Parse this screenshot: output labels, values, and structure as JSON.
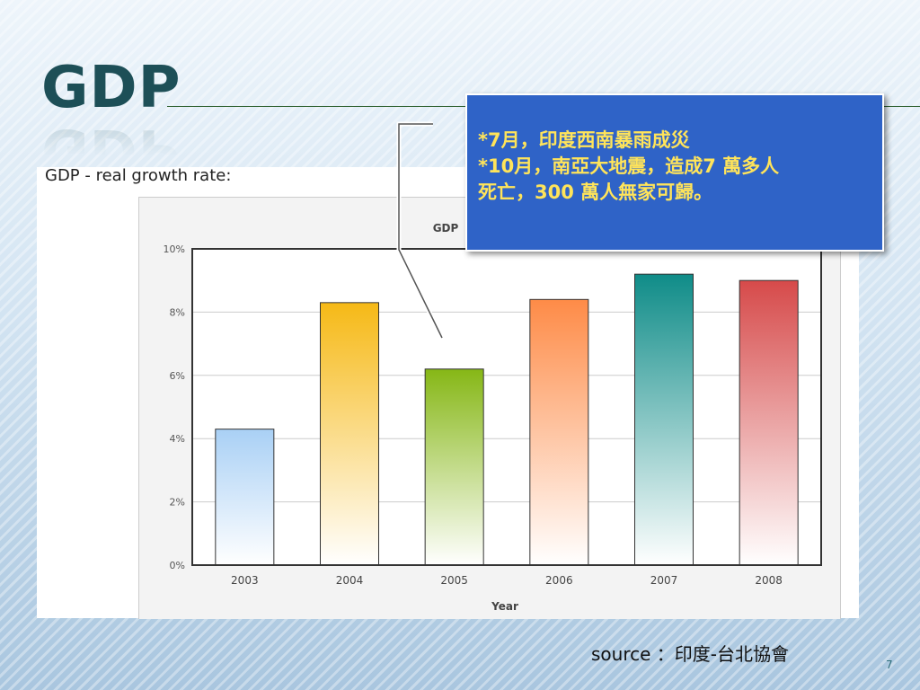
{
  "slide": {
    "title": "GDP",
    "panel_heading": "GDP - real growth rate:",
    "callout_lines": [
      "*7月，印度西南暴雨成災",
      "*10月，南亞大地震，造成7 萬多人",
      "死亡，300 萬人無家可歸。"
    ],
    "source": "source ：印度-台北協會",
    "page_number": "7"
  },
  "colors": {
    "title": "#1d4f57",
    "callout_bg": "#2f63c7",
    "callout_text": "#ffe45a"
  },
  "chart_data": {
    "type": "bar",
    "title": "GDP",
    "xlabel": "Year",
    "ylabel": "",
    "categories": [
      "2003",
      "2004",
      "2005",
      "2006",
      "2007",
      "2008"
    ],
    "values": [
      4.3,
      8.3,
      6.2,
      8.4,
      9.2,
      9.0
    ],
    "ylim": [
      0,
      10
    ],
    "yticks": [
      "0%",
      "2%",
      "4%",
      "6%",
      "8%",
      "10%"
    ],
    "grid": true,
    "bar_colors": [
      "#a9d0f5",
      "#f6b916",
      "#86b716",
      "#fe8b47",
      "#0f8c88",
      "#d64a4a"
    ]
  }
}
